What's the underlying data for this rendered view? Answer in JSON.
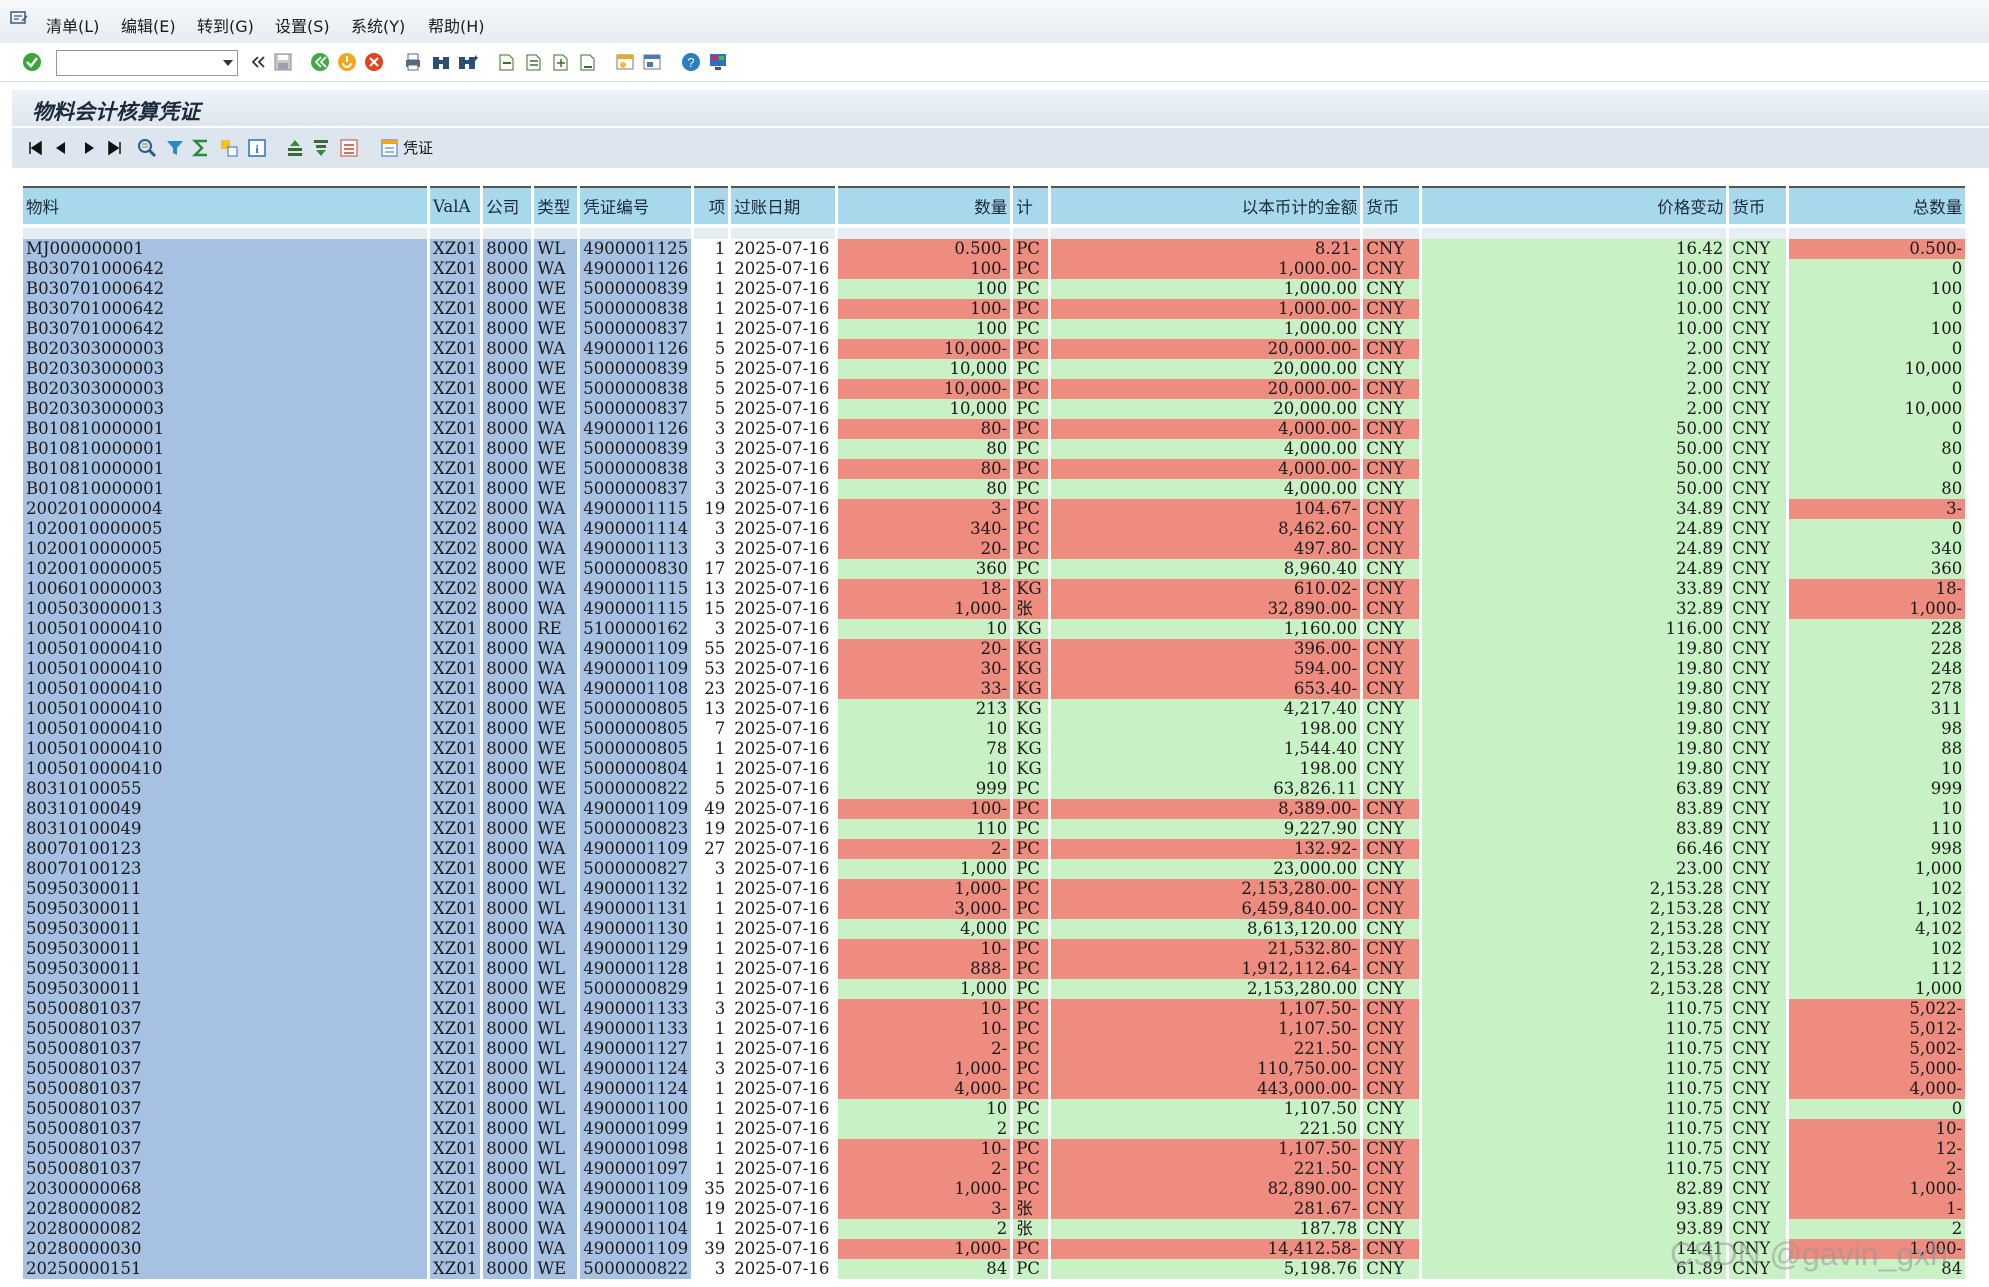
{
  "menu": [
    "清单(L)",
    "编辑(E)",
    "转到(G)",
    "设置(S)",
    "系统(Y)",
    "帮助(H)"
  ],
  "command_field": {
    "value": ""
  },
  "title": "物料会计核算凭证",
  "alv_toolbar": {
    "voucher_label": "凭证"
  },
  "watermark": "CSDN @gavin_gxh",
  "columns": [
    "物料",
    "ValA",
    "公司",
    "类型",
    "凭证编号",
    "项",
    "过账日期",
    "数量",
    "计",
    "以本币计的金额",
    "货币",
    "价格变动",
    "货币",
    "总数量"
  ],
  "rows": [
    [
      "MJ000000001",
      "XZ01",
      "8000",
      "WL",
      "4900001125",
      "1",
      "2025-07-16",
      "0.500-",
      "PC",
      "8.21-",
      "CNY",
      "16.42",
      "CNY",
      "0.500-"
    ],
    [
      "B030701000642",
      "XZ01",
      "8000",
      "WA",
      "4900001126",
      "1",
      "2025-07-16",
      "100-",
      "PC",
      "1,000.00-",
      "CNY",
      "10.00",
      "CNY",
      "0"
    ],
    [
      "B030701000642",
      "XZ01",
      "8000",
      "WE",
      "5000000839",
      "1",
      "2025-07-16",
      "100",
      "PC",
      "1,000.00",
      "CNY",
      "10.00",
      "CNY",
      "100"
    ],
    [
      "B030701000642",
      "XZ01",
      "8000",
      "WE",
      "5000000838",
      "1",
      "2025-07-16",
      "100-",
      "PC",
      "1,000.00-",
      "CNY",
      "10.00",
      "CNY",
      "0"
    ],
    [
      "B030701000642",
      "XZ01",
      "8000",
      "WE",
      "5000000837",
      "1",
      "2025-07-16",
      "100",
      "PC",
      "1,000.00",
      "CNY",
      "10.00",
      "CNY",
      "100"
    ],
    [
      "B020303000003",
      "XZ01",
      "8000",
      "WA",
      "4900001126",
      "5",
      "2025-07-16",
      "10,000-",
      "PC",
      "20,000.00-",
      "CNY",
      "2.00",
      "CNY",
      "0"
    ],
    [
      "B020303000003",
      "XZ01",
      "8000",
      "WE",
      "5000000839",
      "5",
      "2025-07-16",
      "10,000",
      "PC",
      "20,000.00",
      "CNY",
      "2.00",
      "CNY",
      "10,000"
    ],
    [
      "B020303000003",
      "XZ01",
      "8000",
      "WE",
      "5000000838",
      "5",
      "2025-07-16",
      "10,000-",
      "PC",
      "20,000.00-",
      "CNY",
      "2.00",
      "CNY",
      "0"
    ],
    [
      "B020303000003",
      "XZ01",
      "8000",
      "WE",
      "5000000837",
      "5",
      "2025-07-16",
      "10,000",
      "PC",
      "20,000.00",
      "CNY",
      "2.00",
      "CNY",
      "10,000"
    ],
    [
      "B010810000001",
      "XZ01",
      "8000",
      "WA",
      "4900001126",
      "3",
      "2025-07-16",
      "80-",
      "PC",
      "4,000.00-",
      "CNY",
      "50.00",
      "CNY",
      "0"
    ],
    [
      "B010810000001",
      "XZ01",
      "8000",
      "WE",
      "5000000839",
      "3",
      "2025-07-16",
      "80",
      "PC",
      "4,000.00",
      "CNY",
      "50.00",
      "CNY",
      "80"
    ],
    [
      "B010810000001",
      "XZ01",
      "8000",
      "WE",
      "5000000838",
      "3",
      "2025-07-16",
      "80-",
      "PC",
      "4,000.00-",
      "CNY",
      "50.00",
      "CNY",
      "0"
    ],
    [
      "B010810000001",
      "XZ01",
      "8000",
      "WE",
      "5000000837",
      "3",
      "2025-07-16",
      "80",
      "PC",
      "4,000.00",
      "CNY",
      "50.00",
      "CNY",
      "80"
    ],
    [
      "2002010000004",
      "XZ02",
      "8000",
      "WA",
      "4900001115",
      "19",
      "2025-07-16",
      "3-",
      "PC",
      "104.67-",
      "CNY",
      "34.89",
      "CNY",
      "3-"
    ],
    [
      "1020010000005",
      "XZ02",
      "8000",
      "WA",
      "4900001114",
      "3",
      "2025-07-16",
      "340-",
      "PC",
      "8,462.60-",
      "CNY",
      "24.89",
      "CNY",
      "0"
    ],
    [
      "1020010000005",
      "XZ02",
      "8000",
      "WA",
      "4900001113",
      "3",
      "2025-07-16",
      "20-",
      "PC",
      "497.80-",
      "CNY",
      "24.89",
      "CNY",
      "340"
    ],
    [
      "1020010000005",
      "XZ02",
      "8000",
      "WE",
      "5000000830",
      "17",
      "2025-07-16",
      "360",
      "PC",
      "8,960.40",
      "CNY",
      "24.89",
      "CNY",
      "360"
    ],
    [
      "1006010000003",
      "XZ02",
      "8000",
      "WA",
      "4900001115",
      "13",
      "2025-07-16",
      "18-",
      "KG",
      "610.02-",
      "CNY",
      "33.89",
      "CNY",
      "18-"
    ],
    [
      "1005030000013",
      "XZ02",
      "8000",
      "WA",
      "4900001115",
      "15",
      "2025-07-16",
      "1,000-",
      "张",
      "32,890.00-",
      "CNY",
      "32.89",
      "CNY",
      "1,000-"
    ],
    [
      "1005010000410",
      "XZ01",
      "8000",
      "RE",
      "5100000162",
      "3",
      "2025-07-16",
      "10",
      "KG",
      "1,160.00",
      "CNY",
      "116.00",
      "CNY",
      "228"
    ],
    [
      "1005010000410",
      "XZ01",
      "8000",
      "WA",
      "4900001109",
      "55",
      "2025-07-16",
      "20-",
      "KG",
      "396.00-",
      "CNY",
      "19.80",
      "CNY",
      "228"
    ],
    [
      "1005010000410",
      "XZ01",
      "8000",
      "WA",
      "4900001109",
      "53",
      "2025-07-16",
      "30-",
      "KG",
      "594.00-",
      "CNY",
      "19.80",
      "CNY",
      "248"
    ],
    [
      "1005010000410",
      "XZ01",
      "8000",
      "WA",
      "4900001108",
      "23",
      "2025-07-16",
      "33-",
      "KG",
      "653.40-",
      "CNY",
      "19.80",
      "CNY",
      "278"
    ],
    [
      "1005010000410",
      "XZ01",
      "8000",
      "WE",
      "5000000805",
      "13",
      "2025-07-16",
      "213",
      "KG",
      "4,217.40",
      "CNY",
      "19.80",
      "CNY",
      "311"
    ],
    [
      "1005010000410",
      "XZ01",
      "8000",
      "WE",
      "5000000805",
      "7",
      "2025-07-16",
      "10",
      "KG",
      "198.00",
      "CNY",
      "19.80",
      "CNY",
      "98"
    ],
    [
      "1005010000410",
      "XZ01",
      "8000",
      "WE",
      "5000000805",
      "1",
      "2025-07-16",
      "78",
      "KG",
      "1,544.40",
      "CNY",
      "19.80",
      "CNY",
      "88"
    ],
    [
      "1005010000410",
      "XZ01",
      "8000",
      "WE",
      "5000000804",
      "1",
      "2025-07-16",
      "10",
      "KG",
      "198.00",
      "CNY",
      "19.80",
      "CNY",
      "10"
    ],
    [
      "80310100055",
      "XZ01",
      "8000",
      "WE",
      "5000000822",
      "5",
      "2025-07-16",
      "999",
      "PC",
      "63,826.11",
      "CNY",
      "63.89",
      "CNY",
      "999"
    ],
    [
      "80310100049",
      "XZ01",
      "8000",
      "WA",
      "4900001109",
      "49",
      "2025-07-16",
      "100-",
      "PC",
      "8,389.00-",
      "CNY",
      "83.89",
      "CNY",
      "10"
    ],
    [
      "80310100049",
      "XZ01",
      "8000",
      "WE",
      "5000000823",
      "19",
      "2025-07-16",
      "110",
      "PC",
      "9,227.90",
      "CNY",
      "83.89",
      "CNY",
      "110"
    ],
    [
      "80070100123",
      "XZ01",
      "8000",
      "WA",
      "4900001109",
      "27",
      "2025-07-16",
      "2-",
      "PC",
      "132.92-",
      "CNY",
      "66.46",
      "CNY",
      "998"
    ],
    [
      "80070100123",
      "XZ01",
      "8000",
      "WE",
      "5000000827",
      "3",
      "2025-07-16",
      "1,000",
      "PC",
      "23,000.00",
      "CNY",
      "23.00",
      "CNY",
      "1,000"
    ],
    [
      "50950300011",
      "XZ01",
      "8000",
      "WL",
      "4900001132",
      "1",
      "2025-07-16",
      "1,000-",
      "PC",
      "2,153,280.00-",
      "CNY",
      "2,153.28",
      "CNY",
      "102"
    ],
    [
      "50950300011",
      "XZ01",
      "8000",
      "WL",
      "4900001131",
      "1",
      "2025-07-16",
      "3,000-",
      "PC",
      "6,459,840.00-",
      "CNY",
      "2,153.28",
      "CNY",
      "1,102"
    ],
    [
      "50950300011",
      "XZ01",
      "8000",
      "WA",
      "4900001130",
      "1",
      "2025-07-16",
      "4,000",
      "PC",
      "8,613,120.00",
      "CNY",
      "2,153.28",
      "CNY",
      "4,102"
    ],
    [
      "50950300011",
      "XZ01",
      "8000",
      "WL",
      "4900001129",
      "1",
      "2025-07-16",
      "10-",
      "PC",
      "21,532.80-",
      "CNY",
      "2,153.28",
      "CNY",
      "102"
    ],
    [
      "50950300011",
      "XZ01",
      "8000",
      "WL",
      "4900001128",
      "1",
      "2025-07-16",
      "888-",
      "PC",
      "1,912,112.64-",
      "CNY",
      "2,153.28",
      "CNY",
      "112"
    ],
    [
      "50950300011",
      "XZ01",
      "8000",
      "WE",
      "5000000829",
      "1",
      "2025-07-16",
      "1,000",
      "PC",
      "2,153,280.00",
      "CNY",
      "2,153.28",
      "CNY",
      "1,000"
    ],
    [
      "50500801037",
      "XZ01",
      "8000",
      "WL",
      "4900001133",
      "3",
      "2025-07-16",
      "10-",
      "PC",
      "1,107.50-",
      "CNY",
      "110.75",
      "CNY",
      "5,022-"
    ],
    [
      "50500801037",
      "XZ01",
      "8000",
      "WL",
      "4900001133",
      "1",
      "2025-07-16",
      "10-",
      "PC",
      "1,107.50-",
      "CNY",
      "110.75",
      "CNY",
      "5,012-"
    ],
    [
      "50500801037",
      "XZ01",
      "8000",
      "WL",
      "4900001127",
      "1",
      "2025-07-16",
      "2-",
      "PC",
      "221.50-",
      "CNY",
      "110.75",
      "CNY",
      "5,002-"
    ],
    [
      "50500801037",
      "XZ01",
      "8000",
      "WL",
      "4900001124",
      "3",
      "2025-07-16",
      "1,000-",
      "PC",
      "110,750.00-",
      "CNY",
      "110.75",
      "CNY",
      "5,000-"
    ],
    [
      "50500801037",
      "XZ01",
      "8000",
      "WL",
      "4900001124",
      "1",
      "2025-07-16",
      "4,000-",
      "PC",
      "443,000.00-",
      "CNY",
      "110.75",
      "CNY",
      "4,000-"
    ],
    [
      "50500801037",
      "XZ01",
      "8000",
      "WL",
      "4900001100",
      "1",
      "2025-07-16",
      "10",
      "PC",
      "1,107.50",
      "CNY",
      "110.75",
      "CNY",
      "0"
    ],
    [
      "50500801037",
      "XZ01",
      "8000",
      "WL",
      "4900001099",
      "1",
      "2025-07-16",
      "2",
      "PC",
      "221.50",
      "CNY",
      "110.75",
      "CNY",
      "10-"
    ],
    [
      "50500801037",
      "XZ01",
      "8000",
      "WL",
      "4900001098",
      "1",
      "2025-07-16",
      "10-",
      "PC",
      "1,107.50-",
      "CNY",
      "110.75",
      "CNY",
      "12-"
    ],
    [
      "50500801037",
      "XZ01",
      "8000",
      "WL",
      "4900001097",
      "1",
      "2025-07-16",
      "2-",
      "PC",
      "221.50-",
      "CNY",
      "110.75",
      "CNY",
      "2-"
    ],
    [
      "20300000068",
      "XZ01",
      "8000",
      "WA",
      "4900001109",
      "35",
      "2025-07-16",
      "1,000-",
      "PC",
      "82,890.00-",
      "CNY",
      "82.89",
      "CNY",
      "1,000-"
    ],
    [
      "20280000082",
      "XZ01",
      "8000",
      "WA",
      "4900001108",
      "19",
      "2025-07-16",
      "3-",
      "张",
      "281.67-",
      "CNY",
      "93.89",
      "CNY",
      "1-"
    ],
    [
      "20280000082",
      "XZ01",
      "8000",
      "WA",
      "4900001104",
      "1",
      "2025-07-16",
      "2",
      "张",
      "187.78",
      "CNY",
      "93.89",
      "CNY",
      "2"
    ],
    [
      "20280000030",
      "XZ01",
      "8000",
      "WA",
      "4900001109",
      "39",
      "2025-07-16",
      "1,000-",
      "PC",
      "14,412.58-",
      "CNY",
      "14.41",
      "CNY",
      "1,000-"
    ],
    [
      "20250000151",
      "XZ01",
      "8000",
      "WE",
      "5000000822",
      "3",
      "2025-07-16",
      "84",
      "PC",
      "5,198.76",
      "CNY",
      "61.89",
      "CNY",
      "84"
    ]
  ],
  "colors": {
    "key": "#a7c1e2",
    "positive": "#c8f2c6",
    "negative": "#ef8c80",
    "header": "#a8d8ec"
  },
  "icons": {
    "toolbar": [
      "check-icon",
      "back-icon",
      "save-icon",
      "back-green-icon",
      "exit-icon",
      "cancel-icon",
      "print-icon",
      "find-icon",
      "find-next-icon",
      "first-page-icon",
      "prev-page-icon",
      "next-page-icon",
      "last-page-icon",
      "create-session-icon",
      "shortcut-icon",
      "help-icon",
      "customize-icon"
    ],
    "alv": [
      "first-icon",
      "prev-icon",
      "next-icon",
      "last-icon",
      "details-icon",
      "filter-icon",
      "sum-icon",
      "subtotal-icon",
      "info-icon",
      "sort-asc-icon",
      "sort-desc-icon",
      "export-icon",
      "voucher-icon"
    ]
  }
}
